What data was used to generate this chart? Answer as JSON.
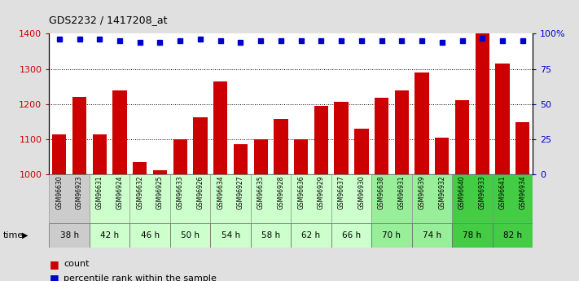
{
  "title": "GDS2232 / 1417208_at",
  "samples": [
    "GSM96630",
    "GSM96923",
    "GSM96631",
    "GSM96924",
    "GSM96632",
    "GSM96925",
    "GSM96633",
    "GSM96926",
    "GSM96634",
    "GSM96927",
    "GSM96635",
    "GSM96928",
    "GSM96636",
    "GSM96929",
    "GSM96637",
    "GSM96930",
    "GSM96638",
    "GSM96931",
    "GSM96639",
    "GSM96932",
    "GSM96640",
    "GSM96933",
    "GSM96641",
    "GSM96934"
  ],
  "counts": [
    1113,
    1220,
    1113,
    1238,
    1035,
    1012,
    1100,
    1163,
    1265,
    1085,
    1100,
    1158,
    1100,
    1195,
    1205,
    1130,
    1218,
    1238,
    1290,
    1105,
    1210,
    1400,
    1315,
    1148
  ],
  "percentiles": [
    96,
    96,
    96,
    95,
    94,
    94,
    95,
    96,
    95,
    94,
    95,
    95,
    95,
    95,
    95,
    95,
    95,
    95,
    95,
    94,
    95,
    97,
    95,
    95
  ],
  "time_groups": [
    {
      "label": "38 h",
      "start": 0,
      "end": 2,
      "color": "#cccccc"
    },
    {
      "label": "42 h",
      "start": 2,
      "end": 4,
      "color": "#ccffcc"
    },
    {
      "label": "46 h",
      "start": 4,
      "end": 6,
      "color": "#ccffcc"
    },
    {
      "label": "50 h",
      "start": 6,
      "end": 8,
      "color": "#ccffcc"
    },
    {
      "label": "54 h",
      "start": 8,
      "end": 10,
      "color": "#ccffcc"
    },
    {
      "label": "58 h",
      "start": 10,
      "end": 12,
      "color": "#ccffcc"
    },
    {
      "label": "62 h",
      "start": 12,
      "end": 14,
      "color": "#ccffcc"
    },
    {
      "label": "66 h",
      "start": 14,
      "end": 16,
      "color": "#ccffcc"
    },
    {
      "label": "70 h",
      "start": 16,
      "end": 18,
      "color": "#99ee99"
    },
    {
      "label": "74 h",
      "start": 18,
      "end": 20,
      "color": "#99ee99"
    },
    {
      "label": "78 h",
      "start": 20,
      "end": 22,
      "color": "#44cc44"
    },
    {
      "label": "82 h",
      "start": 22,
      "end": 24,
      "color": "#44cc44"
    }
  ],
  "bar_color": "#cc0000",
  "dot_color": "#0000cc",
  "ylim_left": [
    1000,
    1400
  ],
  "ylim_right": [
    0,
    100
  ],
  "yticks_left": [
    1000,
    1100,
    1200,
    1300,
    1400
  ],
  "yticks_right": [
    0,
    25,
    50,
    75,
    100
  ],
  "yticklabels_right": [
    "0",
    "25",
    "50",
    "75",
    "100%"
  ],
  "bg_color": "#e0e0e0",
  "plot_bg": "#ffffff",
  "legend_count": "count",
  "legend_pct": "percentile rank within the sample"
}
